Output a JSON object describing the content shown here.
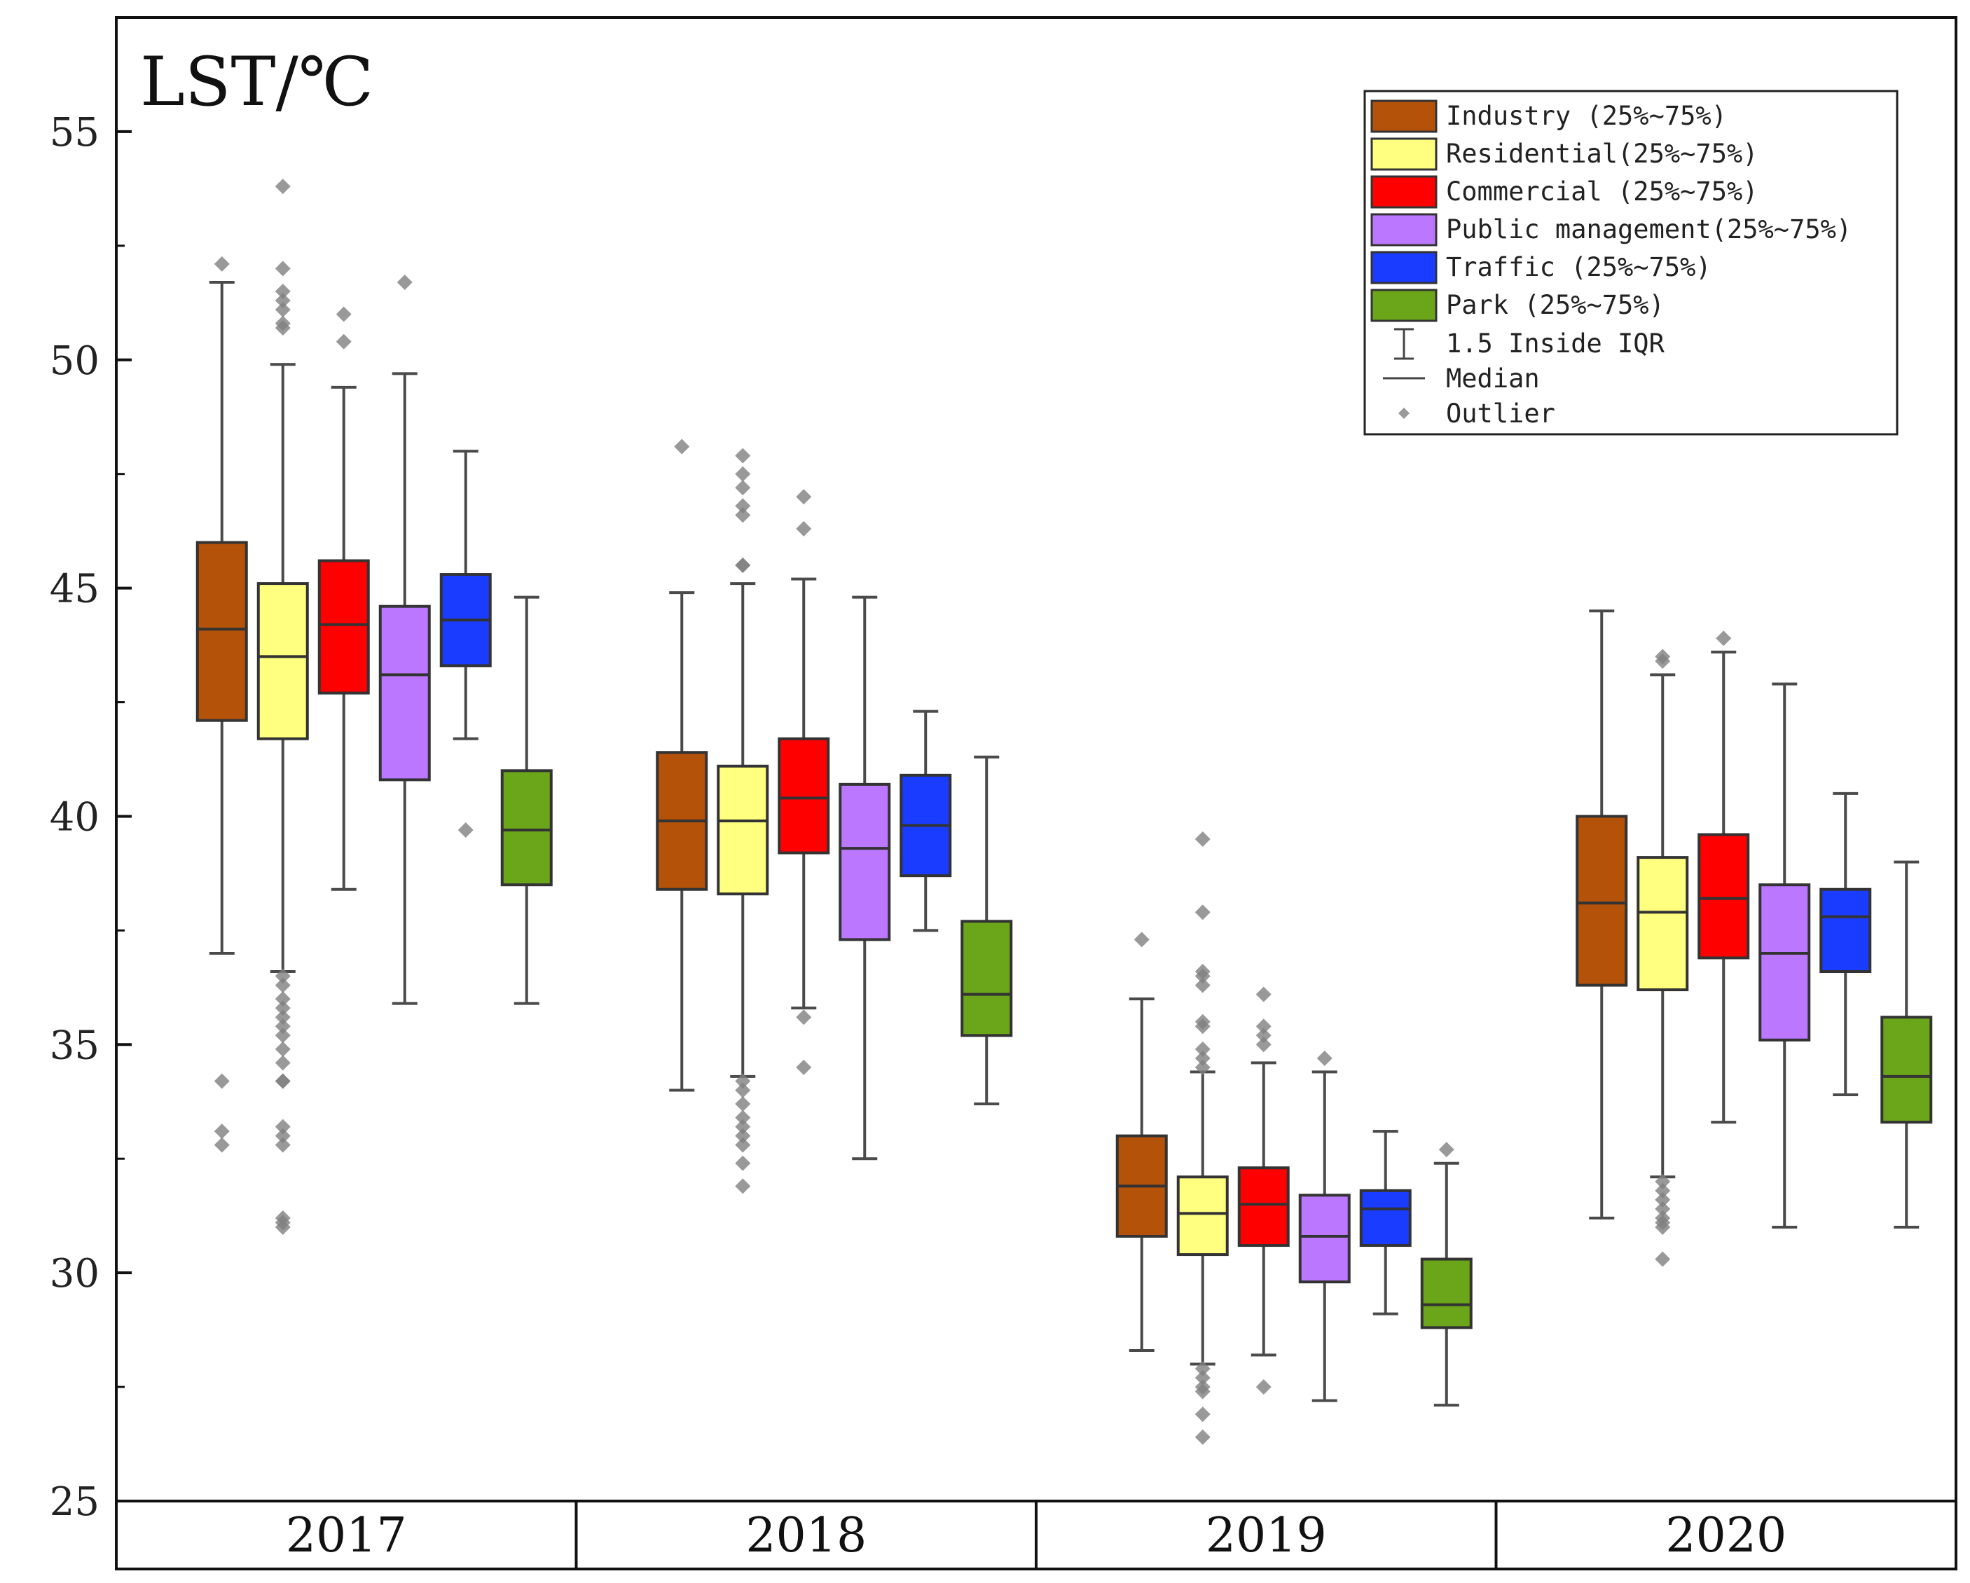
{
  "chart_data": {
    "type": "boxplot",
    "ylabel": "LST/℃",
    "ylim": [
      25,
      57.5
    ],
    "yticks": [
      25,
      30,
      35,
      40,
      45,
      50,
      55
    ],
    "ytick_labels": [
      "25",
      "30",
      "35",
      "40",
      "45",
      "50",
      "55"
    ],
    "groups": [
      "2017",
      "2018",
      "2019",
      "2020"
    ],
    "series": [
      {
        "name": "Industry",
        "legend_label": "Industry   (25%~75%)",
        "color": "#b5520a",
        "boxes": [
          {
            "whisker_low": 37.0,
            "q1": 42.1,
            "median": 44.1,
            "q3": 46.0,
            "whisker_high": 51.7,
            "outliers": [
              52.1,
              34.2,
              33.1,
              32.8
            ]
          },
          {
            "whisker_low": 34.0,
            "q1": 38.4,
            "median": 39.9,
            "q3": 41.4,
            "whisker_high": 44.9,
            "outliers": [
              48.1
            ]
          },
          {
            "whisker_low": 28.3,
            "q1": 30.8,
            "median": 31.9,
            "q3": 33.0,
            "whisker_high": 36.0,
            "outliers": [
              37.3
            ]
          },
          {
            "whisker_low": 31.2,
            "q1": 36.3,
            "median": 38.1,
            "q3": 40.0,
            "whisker_high": 44.5,
            "outliers": []
          }
        ]
      },
      {
        "name": "Residential",
        "legend_label": "Residential(25%~75%)",
        "color": "#ffff80",
        "boxes": [
          {
            "whisker_low": 36.6,
            "q1": 41.7,
            "median": 43.5,
            "q3": 45.1,
            "whisker_high": 49.9,
            "outliers": [
              53.8,
              52.0,
              51.5,
              51.3,
              51.1,
              50.8,
              50.7,
              36.5,
              36.3,
              36.0,
              35.8,
              35.6,
              35.4,
              35.2,
              34.9,
              34.6,
              34.2,
              34.2,
              33.2,
              33.0,
              32.8,
              31.2,
              31.1,
              31.0
            ]
          },
          {
            "whisker_low": 34.3,
            "q1": 38.3,
            "median": 39.9,
            "q3": 41.1,
            "whisker_high": 45.1,
            "outliers": [
              47.9,
              47.5,
              47.2,
              46.8,
              46.6,
              45.5,
              45.5,
              34.2,
              34.0,
              33.7,
              33.4,
              33.2,
              33.0,
              32.8,
              32.4,
              31.9
            ]
          },
          {
            "whisker_low": 28.0,
            "q1": 30.4,
            "median": 31.3,
            "q3": 32.1,
            "whisker_high": 34.4,
            "outliers": [
              39.5,
              37.9,
              36.6,
              36.5,
              36.3,
              35.5,
              35.4,
              34.9,
              34.7,
              34.5,
              27.9,
              27.7,
              27.5,
              27.4,
              26.9,
              26.4
            ]
          },
          {
            "whisker_low": 32.1,
            "q1": 36.2,
            "median": 37.9,
            "q3": 39.1,
            "whisker_high": 43.1,
            "outliers": [
              43.5,
              43.4,
              32.0,
              31.8,
              31.6,
              31.4,
              31.2,
              31.1,
              31.0,
              30.3
            ]
          }
        ]
      },
      {
        "name": "Commercial",
        "legend_label": "Commercial (25%~75%)",
        "color": "#ff0000",
        "boxes": [
          {
            "whisker_low": 38.4,
            "q1": 42.7,
            "median": 44.2,
            "q3": 45.6,
            "whisker_high": 49.4,
            "outliers": [
              51.0,
              50.4
            ]
          },
          {
            "whisker_low": 35.8,
            "q1": 39.2,
            "median": 40.4,
            "q3": 41.7,
            "whisker_high": 45.2,
            "outliers": [
              47.0,
              46.3,
              35.6,
              34.5
            ]
          },
          {
            "whisker_low": 28.2,
            "q1": 30.6,
            "median": 31.5,
            "q3": 32.3,
            "whisker_high": 34.6,
            "outliers": [
              36.1,
              35.4,
              35.2,
              35.0,
              27.5
            ]
          },
          {
            "whisker_low": 33.3,
            "q1": 36.9,
            "median": 38.2,
            "q3": 39.6,
            "whisker_high": 43.6,
            "outliers": [
              43.9
            ]
          }
        ]
      },
      {
        "name": "Public management",
        "legend_label": "Public management(25%~75%)",
        "color": "#bb77ff",
        "boxes": [
          {
            "whisker_low": 35.9,
            "q1": 40.8,
            "median": 43.1,
            "q3": 44.6,
            "whisker_high": 49.7,
            "outliers": [
              51.7
            ]
          },
          {
            "whisker_low": 32.5,
            "q1": 37.3,
            "median": 39.3,
            "q3": 40.7,
            "whisker_high": 44.8,
            "outliers": []
          },
          {
            "whisker_low": 27.2,
            "q1": 29.8,
            "median": 30.8,
            "q3": 31.7,
            "whisker_high": 34.4,
            "outliers": [
              34.7
            ]
          },
          {
            "whisker_low": 31.0,
            "q1": 35.1,
            "median": 37.0,
            "q3": 38.5,
            "whisker_high": 42.9,
            "outliers": []
          }
        ]
      },
      {
        "name": "Traffic",
        "legend_label": "Traffic    (25%~75%)",
        "color": "#1a3cff",
        "boxes": [
          {
            "whisker_low": 41.7,
            "q1": 43.3,
            "median": 44.3,
            "q3": 45.3,
            "whisker_high": 48.0,
            "outliers": [
              39.7
            ]
          },
          {
            "whisker_low": 37.5,
            "q1": 38.7,
            "median": 39.8,
            "q3": 40.9,
            "whisker_high": 42.3,
            "outliers": []
          },
          {
            "whisker_low": 29.1,
            "q1": 30.6,
            "median": 31.4,
            "q3": 31.8,
            "whisker_high": 33.1,
            "outliers": []
          },
          {
            "whisker_low": 33.9,
            "q1": 36.6,
            "median": 37.8,
            "q3": 38.4,
            "whisker_high": 40.5,
            "outliers": []
          }
        ]
      },
      {
        "name": "Park",
        "legend_label": "Park       (25%~75%)",
        "color": "#6aa51a",
        "boxes": [
          {
            "whisker_low": 35.9,
            "q1": 38.5,
            "median": 39.7,
            "q3": 41.0,
            "whisker_high": 44.8,
            "outliers": []
          },
          {
            "whisker_low": 33.7,
            "q1": 35.2,
            "median": 36.1,
            "q3": 37.7,
            "whisker_high": 41.3,
            "outliers": []
          },
          {
            "whisker_low": 27.1,
            "q1": 28.8,
            "median": 29.3,
            "q3": 30.3,
            "whisker_high": 32.4,
            "outliers": [
              32.7
            ]
          },
          {
            "whisker_low": 31.0,
            "q1": 33.3,
            "median": 34.3,
            "q3": 35.6,
            "whisker_high": 39.0,
            "outliers": []
          }
        ]
      }
    ],
    "legend": {
      "position": "top-right",
      "extra_entries": [
        {
          "symbol": "whisker",
          "label": "1.5 Inside IQR"
        },
        {
          "symbol": "median",
          "label": "Median"
        },
        {
          "symbol": "outlier",
          "label": "Outlier"
        }
      ]
    }
  }
}
